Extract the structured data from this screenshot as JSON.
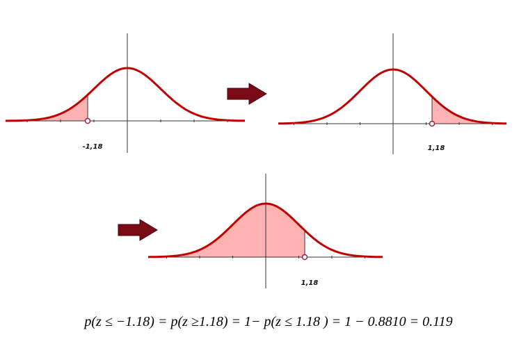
{
  "panels": [
    {
      "label": "-1,18"
    },
    {
      "label": "1,18"
    },
    {
      "label": "1,18"
    }
  ],
  "formula": "p(z ≤ −1.18) = p(z ≥1.18) = 1− p(z ≤ 1.18 )  = 1 − 0.8810 = 0.119"
}
